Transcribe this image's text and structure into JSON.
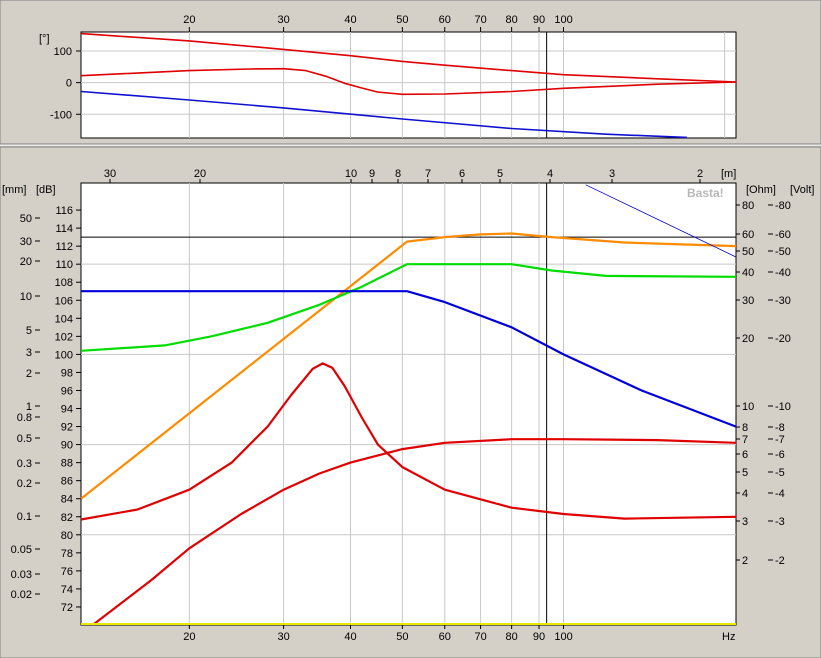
{
  "chart_data": [
    {
      "id": "phase",
      "type": "line",
      "x_scale": "log",
      "xlim": [
        12.55,
        210
      ],
      "x_top_ticks": [
        20,
        30,
        40,
        50,
        60,
        70,
        80,
        90,
        100
      ],
      "ylim": [
        -175,
        160
      ],
      "y_unit": "[°]",
      "y_ticks": [
        100,
        0,
        -100
      ],
      "cursor_x": 93,
      "series": [
        {
          "color": "#e00000",
          "points": [
            [
              12.55,
              155
            ],
            [
              20,
              132
            ],
            [
              30,
              105
            ],
            [
              40,
              85
            ],
            [
              50,
              67
            ],
            [
              60,
              55
            ],
            [
              80,
              38
            ],
            [
              100,
              25
            ],
            [
              150,
              12
            ],
            [
              210,
              2
            ]
          ]
        },
        {
          "color": "#e00000",
          "points": [
            [
              12.55,
              22
            ],
            [
              20,
              38
            ],
            [
              26,
              43
            ],
            [
              30,
              44
            ],
            [
              33,
              38
            ],
            [
              36,
              20
            ],
            [
              39,
              -2
            ],
            [
              42,
              -17
            ],
            [
              45,
              -30
            ],
            [
              50,
              -37
            ],
            [
              60,
              -36
            ],
            [
              80,
              -28
            ],
            [
              100,
              -18
            ],
            [
              150,
              -5
            ],
            [
              210,
              2
            ]
          ]
        },
        {
          "color": "#1010d0",
          "points": [
            [
              12.55,
              -28
            ],
            [
              20,
              -55
            ],
            [
              30,
              -80
            ],
            [
              50,
              -115
            ],
            [
              80,
              -145
            ],
            [
              120,
              -163
            ],
            [
              170,
              -173
            ]
          ]
        }
      ]
    },
    {
      "id": "main",
      "type": "line",
      "x_scale": "log",
      "xlim": [
        12.55,
        210
      ],
      "x_bottom_ticks": [
        20,
        30,
        40,
        50,
        60,
        70,
        80,
        90,
        100
      ],
      "x_unit": "Hz",
      "distance_unit": "[m]",
      "distance_ticks": [
        "30",
        "20",
        "10",
        "9",
        "8",
        "7",
        "6",
        "5",
        "4",
        "3",
        "2"
      ],
      "ylim": [
        70,
        119
      ],
      "y_unit": "[dB]",
      "y_ticks": [
        72,
        74,
        76,
        78,
        80,
        82,
        84,
        86,
        88,
        90,
        92,
        94,
        96,
        98,
        100,
        102,
        104,
        106,
        108,
        110,
        112,
        114,
        116
      ],
      "mm_unit": "[mm]",
      "mm_ticks": [
        "50",
        "30",
        "20",
        "10",
        "5",
        "3",
        "2",
        "1",
        "0.8",
        "0.5",
        "0.3",
        "0.2",
        "0.1",
        "0.05",
        "0.03",
        "0.02"
      ],
      "ohm_unit": "[Ohm]",
      "ohm_ticks": [
        "80",
        "60",
        "50",
        "40",
        "30",
        "20",
        "10",
        "8",
        "7",
        "6",
        "5",
        "4",
        "3",
        "2"
      ],
      "volt_unit": "[Volt]",
      "volt_ticks": [
        "-80",
        "-60",
        "-50",
        "-40",
        "-30",
        "-20",
        "-10",
        "-8",
        "-7",
        "-6",
        "-5",
        "-4",
        "-3",
        "-2"
      ],
      "hline_db": 113,
      "cursor_x": 93,
      "watermark": "Basta!",
      "series": [
        {
          "color": "#ff8c00",
          "points": [
            [
              12.55,
              84
            ],
            [
              51,
              112.5
            ],
            [
              60,
              113
            ],
            [
              70,
              113.3
            ],
            [
              80,
              113.4
            ],
            [
              95,
              113
            ],
            [
              130,
              112.4
            ],
            [
              210,
              112
            ]
          ]
        },
        {
          "color": "#00dd00",
          "points": [
            [
              12.55,
              100.4
            ],
            [
              18,
              101
            ],
            [
              22,
              102
            ],
            [
              28,
              103.5
            ],
            [
              35,
              105.5
            ],
            [
              42,
              107.5
            ],
            [
              51,
              110
            ],
            [
              80,
              110
            ],
            [
              95,
              109.3
            ],
            [
              120,
              108.7
            ],
            [
              210,
              108.6
            ]
          ]
        },
        {
          "color": "#0000dd",
          "points": [
            [
              12.55,
              107
            ],
            [
              51,
              107
            ],
            [
              60,
              105.8
            ],
            [
              80,
              103
            ],
            [
              100,
              100
            ],
            [
              140,
              96
            ],
            [
              210,
              92
            ]
          ]
        },
        {
          "color": "#e00000",
          "points": [
            [
              12.55,
              81.7
            ],
            [
              16,
              82.8
            ],
            [
              20,
              85
            ],
            [
              24,
              88
            ],
            [
              28,
              92
            ],
            [
              31,
              95.5
            ],
            [
              34,
              98.4
            ],
            [
              35.5,
              99
            ],
            [
              37,
              98.5
            ],
            [
              39,
              96.5
            ],
            [
              42,
              93
            ],
            [
              45,
              90
            ],
            [
              50,
              87.5
            ],
            [
              60,
              85
            ],
            [
              80,
              83
            ],
            [
              100,
              82.3
            ],
            [
              130,
              81.8
            ],
            [
              210,
              82
            ]
          ]
        },
        {
          "color": "#e00000",
          "points": [
            [
              13.2,
              70
            ],
            [
              17,
              75
            ],
            [
              20,
              78.5
            ],
            [
              25,
              82.3
            ],
            [
              30,
              85
            ],
            [
              35,
              86.8
            ],
            [
              40,
              88
            ],
            [
              50,
              89.5
            ],
            [
              60,
              90.2
            ],
            [
              80,
              90.6
            ],
            [
              100,
              90.6
            ],
            [
              150,
              90.5
            ],
            [
              210,
              90.2
            ]
          ]
        },
        {
          "color": "#0000cc",
          "width": 0.8,
          "points": [
            [
              110,
              118.8
            ],
            [
              210,
              110.8
            ]
          ]
        }
      ]
    }
  ]
}
